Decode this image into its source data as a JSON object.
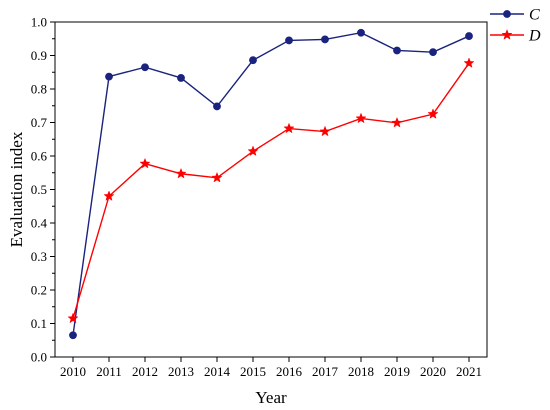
{
  "chart_data": {
    "type": "line",
    "x": [
      2010,
      2011,
      2012,
      2013,
      2014,
      2015,
      2016,
      2017,
      2018,
      2019,
      2020,
      2021
    ],
    "xlabel": "Year",
    "ylabel": "Evaluation index",
    "ylim": [
      0.0,
      1.0
    ],
    "yticks": [
      "0.0",
      "0.1",
      "0.2",
      "0.3",
      "0.4",
      "0.5",
      "0.6",
      "0.7",
      "0.8",
      "0.9",
      "1.0"
    ],
    "grid": false,
    "legend_position": "top-right",
    "series": [
      {
        "name": "C",
        "color": "#1a237e",
        "marker": "circle",
        "values": [
          0.065,
          0.837,
          0.865,
          0.833,
          0.748,
          0.886,
          0.945,
          0.948,
          0.968,
          0.915,
          0.91,
          0.958
        ]
      },
      {
        "name": "D",
        "color": "#ff0000",
        "marker": "star",
        "values": [
          0.115,
          0.48,
          0.577,
          0.547,
          0.535,
          0.614,
          0.682,
          0.673,
          0.712,
          0.699,
          0.725,
          0.877
        ]
      }
    ]
  }
}
